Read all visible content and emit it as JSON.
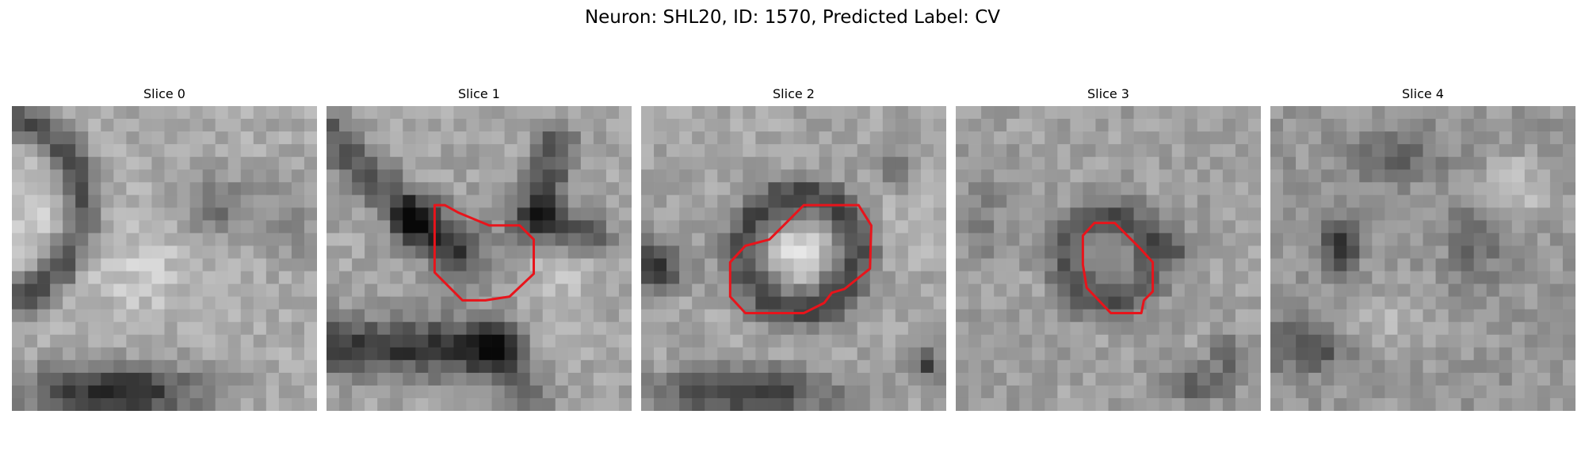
{
  "figure": {
    "title": "Neuron: SHL20, ID: 1570, Predicted Label: CV"
  },
  "colors": {
    "background": "#ffffff",
    "contour": "#e8141b",
    "colormap": "grayscale"
  },
  "slices": [
    {
      "title": "Slice 0",
      "has_contour": false,
      "image_description_icon": "grayscale-em-patch"
    },
    {
      "title": "Slice 1",
      "has_contour": true,
      "image_description_icon": "grayscale-em-patch"
    },
    {
      "title": "Slice 2",
      "has_contour": true,
      "image_description_icon": "grayscale-em-patch"
    },
    {
      "title": "Slice 3",
      "has_contour": true,
      "image_description_icon": "grayscale-em-patch"
    },
    {
      "title": "Slice 4",
      "has_contour": false,
      "image_description_icon": "grayscale-em-patch"
    }
  ]
}
